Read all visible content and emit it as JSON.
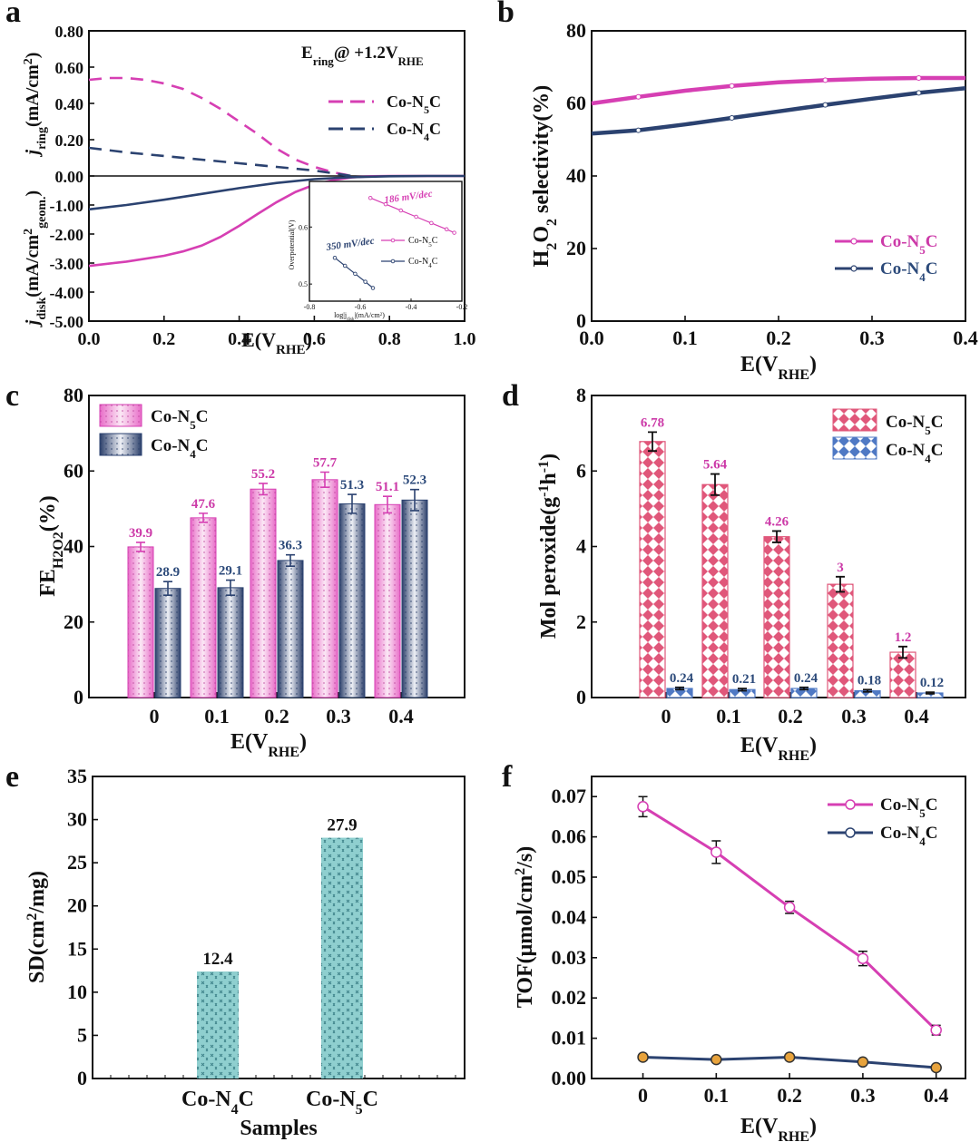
{
  "colors": {
    "n5": "#d63fb3",
    "n4": "#2b4270",
    "n5_label": "#cc3aa8",
    "n4_label": "#2c4a7a",
    "teal": "#7cc4c4",
    "orange": "#e8a33c",
    "diamond_n5": "#e0577a",
    "diamond_n4": "#4f79c4"
  },
  "chart_data": [
    {
      "panel": "a",
      "type": "line",
      "xlabel": "E(V",
      "xlabel_sub": "RHE",
      "xlabel_end": ")",
      "x_ticks": [
        "0.0",
        "0.2",
        "0.4",
        "0.6",
        "0.8",
        "1.0"
      ],
      "xlim": [
        0,
        1.0
      ],
      "ylim": [
        -5.0,
        0.8
      ],
      "y_ticks": [
        "0.80",
        "0.60",
        "0.40",
        "0.20",
        "0.00",
        "-1.00",
        "-2.00",
        "-3.00",
        "-4.00",
        "-5.00"
      ],
      "y_tick_values": [
        0.8,
        0.6,
        0.4,
        0.2,
        0.0,
        -1,
        -2,
        -3,
        -4,
        -5
      ],
      "annotation": {
        "main": "E",
        "sub": "ring",
        "rest": "@ +1.2V",
        "sub2": "RHE"
      },
      "ylabel_ring": {
        "j": "j",
        "sub": "ring",
        "rest": "(mA/cm",
        "sup": "2",
        "end": ")"
      },
      "ylabel_disk": {
        "j": "j",
        "sub": "disk",
        "rest": "(mA/cm",
        "sup": "2",
        "sub2": "geom.",
        "end": ")"
      },
      "legend": [
        {
          "pre": "Co-N",
          "sub": "5",
          "post": "C"
        },
        {
          "pre": "Co-N",
          "sub": "4",
          "post": "C"
        }
      ],
      "series": [
        {
          "name": "Co-N5C ring",
          "style": "dashed",
          "color": "n5",
          "x": [
            0,
            0.05,
            0.1,
            0.15,
            0.2,
            0.25,
            0.3,
            0.35,
            0.4,
            0.45,
            0.5,
            0.55,
            0.6,
            0.65,
            0.7
          ],
          "y": [
            0.53,
            0.54,
            0.54,
            0.53,
            0.51,
            0.48,
            0.43,
            0.37,
            0.3,
            0.23,
            0.15,
            0.09,
            0.05,
            0.02,
            0.0
          ]
        },
        {
          "name": "Co-N4C ring",
          "style": "dashed",
          "color": "n4",
          "x": [
            0,
            0.1,
            0.2,
            0.3,
            0.4,
            0.5,
            0.6,
            0.65,
            0.7
          ],
          "y": [
            0.155,
            0.13,
            0.11,
            0.09,
            0.07,
            0.05,
            0.03,
            0.015,
            0.0
          ]
        },
        {
          "name": "Co-N5C disk",
          "style": "solid",
          "color": "n5",
          "x": [
            0,
            0.1,
            0.2,
            0.25,
            0.3,
            0.35,
            0.4,
            0.45,
            0.5,
            0.55,
            0.6,
            0.65,
            0.7,
            0.75,
            0.8,
            0.85,
            0.9,
            1.0
          ],
          "y": [
            -3.1,
            -2.95,
            -2.75,
            -2.6,
            -2.4,
            -2.1,
            -1.72,
            -1.3,
            -0.9,
            -0.55,
            -0.3,
            -0.14,
            -0.05,
            -0.01,
            0.0,
            0.0,
            0.0,
            0.0
          ]
        },
        {
          "name": "Co-N4C disk",
          "style": "solid",
          "color": "n4",
          "x": [
            0,
            0.1,
            0.2,
            0.3,
            0.4,
            0.5,
            0.6,
            0.7,
            0.8,
            0.9,
            1.0
          ],
          "y": [
            -1.15,
            -1.0,
            -0.82,
            -0.62,
            -0.42,
            -0.24,
            -0.11,
            -0.04,
            -0.01,
            0.0,
            0.0
          ]
        }
      ],
      "inset": {
        "xlabel": "log|j",
        "xlabel_sub": "disk",
        "xlabel_end": "|(mA/cm",
        "xlabel_sup": "2",
        "xlabel_close": ")",
        "ylabel": "Overpotential(V)",
        "x_ticks": [
          "-0.8",
          "-0.6",
          "-0.4",
          "-0.2"
        ],
        "xlim": [
          -0.8,
          -0.2
        ],
        "y_ticks": [
          "0.6",
          "0.5"
        ],
        "ylim": [
          0.47,
          0.68
        ],
        "tafel_n5": "186 mV/dec",
        "tafel_n4": "350 mV/dec",
        "legend": [
          {
            "pre": "Co-N",
            "sub": "5",
            "post": "C"
          },
          {
            "pre": "Co-N",
            "sub": "4",
            "post": "C"
          }
        ],
        "series": [
          {
            "name": "Co-N5C",
            "x": [
              -0.56,
              -0.5,
              -0.44,
              -0.38,
              -0.32,
              -0.26,
              -0.23
            ],
            "y": [
              0.651,
              0.64,
              0.629,
              0.618,
              0.607,
              0.596,
              0.59
            ]
          },
          {
            "name": "Co-N4C",
            "x": [
              -0.7,
              -0.66,
              -0.62,
              -0.58,
              -0.55
            ],
            "y": [
              0.546,
              0.532,
              0.518,
              0.504,
              0.493
            ]
          }
        ]
      }
    },
    {
      "panel": "b",
      "type": "line",
      "xlabel": "E(V",
      "xlabel_sub": "RHE",
      "xlabel_end": ")",
      "ylabel": {
        "pre": "H",
        "sub": "2",
        "mid": "O",
        "sub2": "2",
        "post": " selectivity(%)"
      },
      "x_ticks": [
        "0.0",
        "0.1",
        "0.2",
        "0.3",
        "0.4"
      ],
      "xlim": [
        0,
        0.4
      ],
      "y_ticks": [
        "80",
        "60",
        "40",
        "20",
        "0"
      ],
      "ylim": [
        0,
        80
      ],
      "legend": [
        {
          "pre": "Co-N",
          "sub": "5",
          "post": "C"
        },
        {
          "pre": "Co-N",
          "sub": "4",
          "post": "C"
        }
      ],
      "series": [
        {
          "name": "Co-N5C",
          "x": [
            0,
            0.05,
            0.1,
            0.15,
            0.2,
            0.25,
            0.3,
            0.35,
            0.4
          ],
          "y": [
            60.0,
            61.8,
            63.5,
            64.8,
            65.8,
            66.4,
            66.8,
            67.0,
            67.0
          ]
        },
        {
          "name": "Co-N4C",
          "x": [
            0,
            0.05,
            0.1,
            0.15,
            0.2,
            0.25,
            0.3,
            0.35,
            0.4
          ],
          "y": [
            51.7,
            52.6,
            54.2,
            56.0,
            57.8,
            59.6,
            61.3,
            62.9,
            64.2
          ]
        }
      ]
    },
    {
      "panel": "c",
      "type": "bar",
      "categories": [
        "0",
        "0.1",
        "0.2",
        "0.3",
        "0.4"
      ],
      "xlabel": "E(V",
      "xlabel_sub": "RHE",
      "xlabel_end": ")",
      "ylabel": {
        "pre": "FE",
        "sub": "H2O2",
        "post": "(%)"
      },
      "y_ticks": [
        "80",
        "60",
        "40",
        "20",
        "0"
      ],
      "ylim": [
        0,
        80
      ],
      "legend": [
        {
          "pre": "Co-N",
          "sub": "5",
          "post": "C"
        },
        {
          "pre": "Co-N",
          "sub": "4",
          "post": "C"
        }
      ],
      "series": [
        {
          "name": "Co-N5C",
          "values": [
            39.9,
            47.6,
            55.2,
            57.7,
            51.1
          ],
          "labels": [
            "39.9",
            "47.6",
            "55.2",
            "57.7",
            "51.1"
          ],
          "errors": [
            1.2,
            1.2,
            1.5,
            2.0,
            2.2
          ]
        },
        {
          "name": "Co-N4C",
          "values": [
            28.9,
            29.1,
            36.3,
            51.3,
            52.3
          ],
          "labels": [
            "28.9",
            "29.1",
            "36.3",
            "51.3",
            "52.3"
          ],
          "errors": [
            1.8,
            2.0,
            1.5,
            2.5,
            2.8
          ]
        }
      ]
    },
    {
      "panel": "d",
      "type": "bar",
      "categories": [
        "0",
        "0.1",
        "0.2",
        "0.3",
        "0.4"
      ],
      "xlabel": "E(V",
      "xlabel_sub": "RHE",
      "xlabel_end": ")",
      "ylabel": {
        "pre": "Mol peroxide(g",
        "sup": "-1",
        "mid": "h",
        "sup2": "-1",
        "post": ")"
      },
      "y_ticks": [
        "8",
        "6",
        "4",
        "2",
        "0"
      ],
      "ylim": [
        0,
        8
      ],
      "legend": [
        {
          "pre": "Co-N",
          "sub": "5",
          "post": "C"
        },
        {
          "pre": "Co-N",
          "sub": "4",
          "post": "C"
        }
      ],
      "series": [
        {
          "name": "Co-N5C",
          "values": [
            6.78,
            5.64,
            4.26,
            3.0,
            1.2
          ],
          "labels": [
            "6.78",
            "5.64",
            "4.26",
            "3",
            "1.2"
          ],
          "errors": [
            0.25,
            0.28,
            0.15,
            0.2,
            0.15
          ]
        },
        {
          "name": "Co-N4C",
          "values": [
            0.24,
            0.21,
            0.24,
            0.18,
            0.12
          ],
          "labels": [
            "0.24",
            "0.21",
            "0.24",
            "0.18",
            "0.12"
          ],
          "errors": [
            0.03,
            0.03,
            0.03,
            0.03,
            0.02
          ]
        }
      ]
    },
    {
      "panel": "e",
      "type": "bar",
      "categories": [
        {
          "pre": "Co-N",
          "sub": "4",
          "post": "C"
        },
        {
          "pre": "Co-N",
          "sub": "5",
          "post": "C"
        }
      ],
      "xlabel": "Samples",
      "ylabel": {
        "pre": "SD(cm",
        "sup": "2",
        "post": "/mg)"
      },
      "y_ticks": [
        "35",
        "30",
        "25",
        "20",
        "15",
        "10",
        "5",
        "0"
      ],
      "ylim": [
        0,
        35
      ],
      "values": [
        12.4,
        27.9
      ],
      "labels": [
        "12.4",
        "27.9"
      ]
    },
    {
      "panel": "f",
      "type": "line",
      "xlabel": "E(V",
      "xlabel_sub": "RHE",
      "xlabel_end": ")",
      "ylabel": {
        "pre": "TOF(μmol/cm",
        "sup": "2",
        "post": "/s)"
      },
      "x_ticks": [
        "0",
        "0.1",
        "0.2",
        "0.3",
        "0.4"
      ],
      "x_tick_values": [
        0,
        0.1,
        0.2,
        0.3,
        0.4
      ],
      "xlim": [
        -0.07,
        0.44
      ],
      "y_ticks": [
        "0.07",
        "0.06",
        "0.05",
        "0.04",
        "0.03",
        "0.02",
        "0.01",
        "0.00"
      ],
      "ylim": [
        0,
        0.075
      ],
      "legend": [
        {
          "pre": "Co-N",
          "sub": "5",
          "post": "C"
        },
        {
          "pre": "Co-N",
          "sub": "4",
          "post": "C"
        }
      ],
      "series": [
        {
          "name": "Co-N5C",
          "x": [
            0,
            0.1,
            0.2,
            0.3,
            0.4
          ],
          "y": [
            0.0675,
            0.0562,
            0.0425,
            0.0298,
            0.012
          ],
          "errors": [
            0.0025,
            0.0028,
            0.0015,
            0.0018,
            0.0012
          ]
        },
        {
          "name": "Co-N4C",
          "x": [
            0,
            0.1,
            0.2,
            0.3,
            0.4
          ],
          "y": [
            0.0053,
            0.0047,
            0.0053,
            0.0041,
            0.0027
          ],
          "errors": [
            0,
            0,
            0,
            0,
            0
          ]
        }
      ]
    }
  ],
  "panel_letters": [
    "a",
    "b",
    "c",
    "d",
    "e",
    "f"
  ]
}
